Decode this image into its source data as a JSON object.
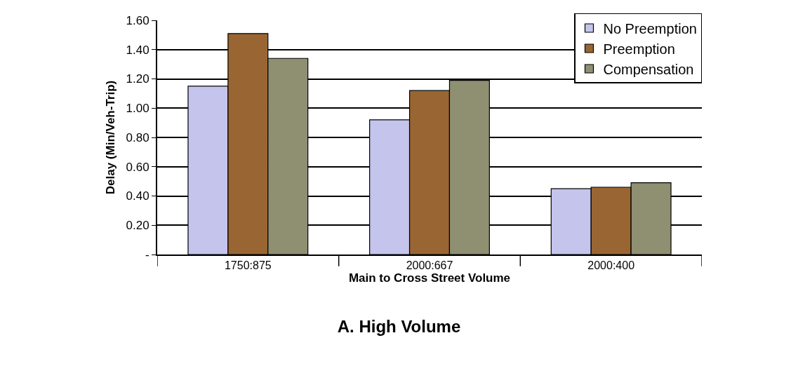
{
  "chart_data": {
    "type": "bar",
    "title": "A. High Volume",
    "xlabel": "Main to Cross Street Volume",
    "ylabel": "Delay (Min/Veh-Trip)",
    "categories": [
      "1750:875",
      "2000:667",
      "2000:400"
    ],
    "series": [
      {
        "name": "No Preemption",
        "color": "#c4c4ec",
        "values": [
          1.15,
          0.92,
          0.45
        ]
      },
      {
        "name": "Preemption",
        "color": "#996633",
        "values": [
          1.51,
          1.12,
          0.46
        ]
      },
      {
        "name": "Compensation",
        "color": "#8f8f72",
        "values": [
          1.34,
          1.19,
          0.49
        ]
      }
    ],
    "ylim": [
      0,
      1.6
    ],
    "yticks": [
      {
        "value": 0,
        "label": "-"
      },
      {
        "value": 0.2,
        "label": "0.20"
      },
      {
        "value": 0.4,
        "label": "0.40"
      },
      {
        "value": 0.6,
        "label": "0.60"
      },
      {
        "value": 0.8,
        "label": "0.80"
      },
      {
        "value": 1.0,
        "label": "1.00"
      },
      {
        "value": 1.2,
        "label": "1.20"
      },
      {
        "value": 1.4,
        "label": "1.40"
      },
      {
        "value": 1.6,
        "label": "1.60"
      }
    ],
    "grid": "y",
    "legend": "top right"
  }
}
